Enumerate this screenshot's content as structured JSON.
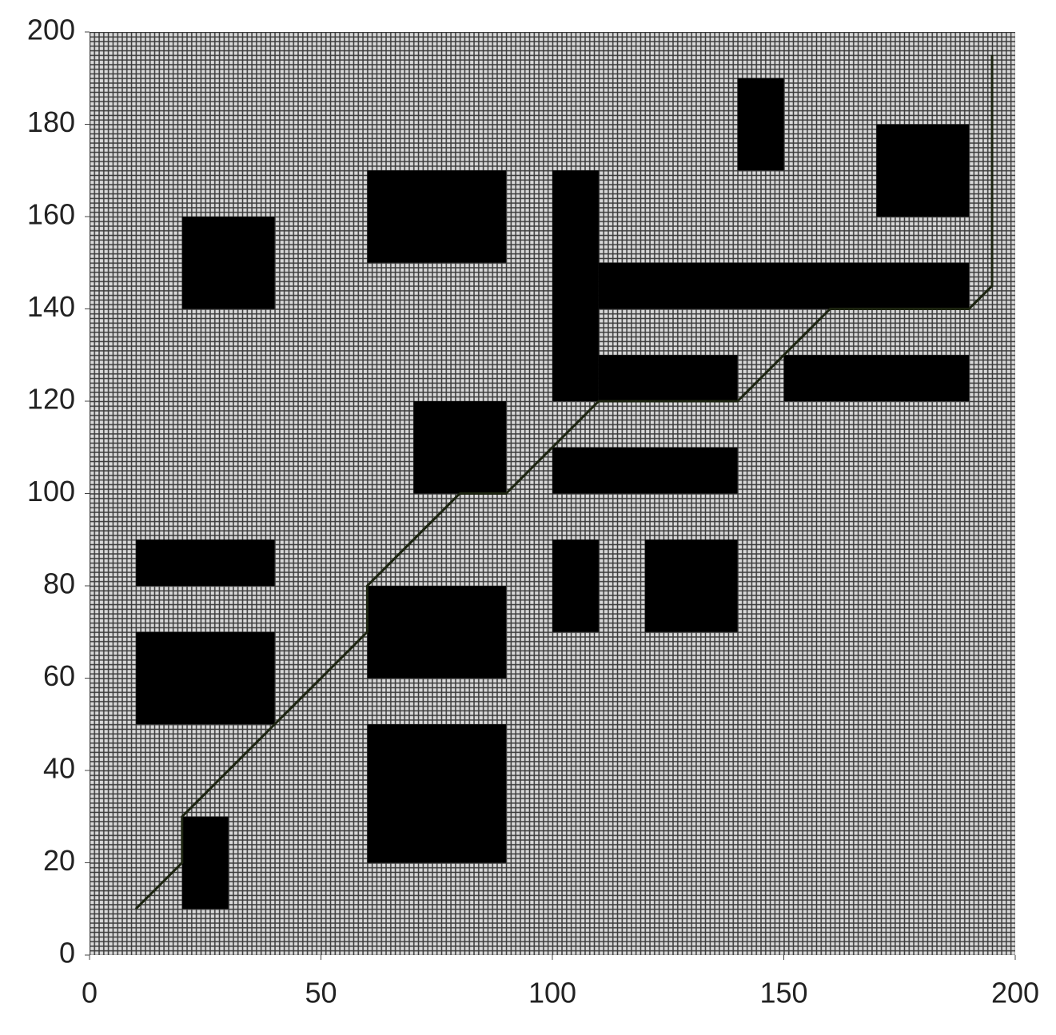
{
  "chart_data": {
    "type": "grid-path",
    "xlim": [
      0,
      200
    ],
    "ylim": [
      0,
      200
    ],
    "xticks": [
      0,
      50,
      100,
      150,
      200
    ],
    "yticks": [
      0,
      20,
      40,
      60,
      80,
      100,
      120,
      140,
      160,
      180,
      200
    ],
    "obstacle_color": "#000000",
    "obstacles": [
      {
        "x": [
          20,
          30
        ],
        "y": [
          10,
          30
        ]
      },
      {
        "x": [
          60,
          90
        ],
        "y": [
          20,
          50
        ]
      },
      {
        "x": [
          60,
          90
        ],
        "y": [
          60,
          80
        ]
      },
      {
        "x": [
          10,
          40
        ],
        "y": [
          50,
          70
        ]
      },
      {
        "x": [
          10,
          40
        ],
        "y": [
          80,
          90
        ]
      },
      {
        "x": [
          20,
          40
        ],
        "y": [
          140,
          160
        ]
      },
      {
        "x": [
          60,
          90
        ],
        "y": [
          150,
          170
        ]
      },
      {
        "x": [
          70,
          90
        ],
        "y": [
          100,
          120
        ]
      },
      {
        "x": [
          100,
          110
        ],
        "y": [
          70,
          90
        ]
      },
      {
        "x": [
          120,
          140
        ],
        "y": [
          70,
          90
        ]
      },
      {
        "x": [
          100,
          140
        ],
        "y": [
          100,
          110
        ]
      },
      {
        "x": [
          100,
          110
        ],
        "y": [
          120,
          170
        ]
      },
      {
        "x": [
          110,
          140
        ],
        "y": [
          120,
          130
        ]
      },
      {
        "x": [
          110,
          190
        ],
        "y": [
          140,
          150
        ]
      },
      {
        "x": [
          150,
          190
        ],
        "y": [
          120,
          130
        ]
      },
      {
        "x": [
          140,
          150
        ],
        "y": [
          170,
          190
        ]
      },
      {
        "x": [
          170,
          190
        ],
        "y": [
          160,
          180
        ]
      }
    ],
    "path": {
      "color": "#1c2410",
      "x": [
        10,
        20,
        20,
        40,
        60,
        60,
        80,
        90,
        110,
        140,
        160,
        190,
        195,
        195
      ],
      "y": [
        10,
        20,
        30,
        50,
        70,
        80,
        100,
        100,
        120,
        120,
        140,
        140,
        145,
        195
      ]
    }
  }
}
